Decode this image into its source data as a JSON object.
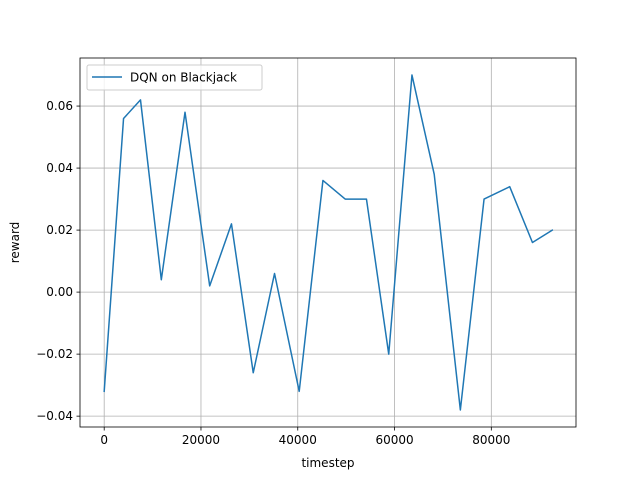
{
  "chart_data": {
    "type": "line",
    "title": "",
    "xlabel": "timestep",
    "ylabel": "reward",
    "xlim": [
      -5000,
      97500
    ],
    "ylim": [
      -0.0435,
      0.0755
    ],
    "xticks": [
      0,
      20000,
      40000,
      60000,
      80000
    ],
    "yticks": [
      -0.04,
      -0.02,
      0.0,
      0.02,
      0.04,
      0.06
    ],
    "xtick_labels": [
      "0",
      "20000",
      "40000",
      "60000",
      "80000"
    ],
    "ytick_labels": [
      "−0.04",
      "−0.02",
      "0.00",
      "0.02",
      "0.04",
      "0.06"
    ],
    "grid": true,
    "legend_position": "upper-left",
    "series": [
      {
        "name": "DQN on Blackjack",
        "color": "#1f77b4",
        "x": [
          0,
          4000,
          7500,
          11800,
          16700,
          21800,
          26300,
          30800,
          35200,
          40300,
          45200,
          49800,
          54200,
          58800,
          63600,
          68200,
          73600,
          78500,
          83800,
          88500,
          92600
        ],
        "y": [
          -0.032,
          0.056,
          0.062,
          0.004,
          0.058,
          0.002,
          0.022,
          -0.026,
          0.006,
          -0.032,
          0.036,
          0.03,
          0.03,
          -0.02,
          0.07,
          0.038,
          -0.038,
          0.03,
          0.034,
          0.016,
          0.02
        ]
      }
    ]
  }
}
